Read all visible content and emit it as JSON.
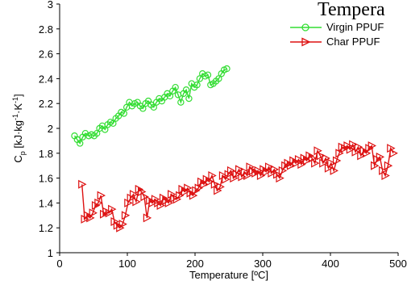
{
  "chart_data": {
    "type": "line",
    "title": "Tempera",
    "xlabel": "Temperature [ºC]",
    "ylabel_main": "C",
    "ylabel_sub": "p",
    "ylabel_rest": " [kJ·kg",
    "ylabel_sup1": "-1",
    "ylabel_mid": "·K",
    "ylabel_sup2": "-1",
    "ylabel_end": "]",
    "xlim": [
      0,
      500
    ],
    "ylim": [
      1,
      3
    ],
    "xticks": [
      0,
      100,
      200,
      300,
      400,
      500
    ],
    "yticks": [
      1,
      1.2,
      1.4,
      1.6,
      1.8,
      2,
      2.2,
      2.4,
      2.6,
      2.8,
      3
    ],
    "legend_position": "top-right",
    "grid": false,
    "series": [
      {
        "name": "Virgin PPUF",
        "color": "#33dd33",
        "marker": "circle",
        "points": [
          [
            22,
            1.94
          ],
          [
            26,
            1.91
          ],
          [
            30,
            1.88
          ],
          [
            34,
            1.93
          ],
          [
            38,
            1.96
          ],
          [
            43,
            1.94
          ],
          [
            47,
            1.95
          ],
          [
            51,
            1.94
          ],
          [
            55,
            1.96
          ],
          [
            59,
            2.0
          ],
          [
            63,
            2.02
          ],
          [
            67,
            1.99
          ],
          [
            71,
            2.03
          ],
          [
            75,
            2.05
          ],
          [
            79,
            2.04
          ],
          [
            83,
            2.08
          ],
          [
            87,
            2.1
          ],
          [
            91,
            2.13
          ],
          [
            95,
            2.12
          ],
          [
            99,
            2.17
          ],
          [
            103,
            2.21
          ],
          [
            107,
            2.18
          ],
          [
            111,
            2.2
          ],
          [
            115,
            2.21
          ],
          [
            119,
            2.18
          ],
          [
            123,
            2.16
          ],
          [
            127,
            2.2
          ],
          [
            131,
            2.22
          ],
          [
            135,
            2.19
          ],
          [
            139,
            2.17
          ],
          [
            143,
            2.21
          ],
          [
            147,
            2.24
          ],
          [
            151,
            2.22
          ],
          [
            155,
            2.25
          ],
          [
            159,
            2.28
          ],
          [
            163,
            2.26
          ],
          [
            167,
            2.3
          ],
          [
            171,
            2.33
          ],
          [
            175,
            2.27
          ],
          [
            179,
            2.21
          ],
          [
            183,
            2.28
          ],
          [
            187,
            2.31
          ],
          [
            191,
            2.24
          ],
          [
            195,
            2.36
          ],
          [
            199,
            2.33
          ],
          [
            203,
            2.35
          ],
          [
            207,
            2.4
          ],
          [
            211,
            2.44
          ],
          [
            215,
            2.42
          ],
          [
            219,
            2.43
          ],
          [
            223,
            2.35
          ],
          [
            227,
            2.36
          ],
          [
            231,
            2.38
          ],
          [
            235,
            2.4
          ],
          [
            239,
            2.44
          ],
          [
            243,
            2.47
          ],
          [
            247,
            2.48
          ]
        ]
      },
      {
        "name": "Char PPUF",
        "color": "#dd1111",
        "marker": "triangle-right",
        "points": [
          [
            33,
            1.55
          ],
          [
            37,
            1.27
          ],
          [
            41,
            1.3
          ],
          [
            45,
            1.28
          ],
          [
            49,
            1.32
          ],
          [
            53,
            1.38
          ],
          [
            57,
            1.4
          ],
          [
            61,
            1.46
          ],
          [
            65,
            1.31
          ],
          [
            69,
            1.33
          ],
          [
            73,
            1.32
          ],
          [
            77,
            1.35
          ],
          [
            81,
            1.25
          ],
          [
            85,
            1.22
          ],
          [
            89,
            1.2
          ],
          [
            93,
            1.23
          ],
          [
            97,
            1.3
          ],
          [
            101,
            1.4
          ],
          [
            105,
            1.44
          ],
          [
            109,
            1.47
          ],
          [
            113,
            1.41
          ],
          [
            117,
            1.51
          ],
          [
            121,
            1.49
          ],
          [
            125,
            1.45
          ],
          [
            129,
            1.28
          ],
          [
            133,
            1.42
          ],
          [
            137,
            1.4
          ],
          [
            141,
            1.43
          ],
          [
            145,
            1.4
          ],
          [
            149,
            1.38
          ],
          [
            153,
            1.44
          ],
          [
            157,
            1.42
          ],
          [
            161,
            1.4
          ],
          [
            165,
            1.47
          ],
          [
            169,
            1.44
          ],
          [
            173,
            1.43
          ],
          [
            177,
            1.46
          ],
          [
            181,
            1.51
          ],
          [
            185,
            1.49
          ],
          [
            189,
            1.52
          ],
          [
            193,
            1.48
          ],
          [
            197,
            1.46
          ],
          [
            201,
            1.5
          ],
          [
            205,
            1.52
          ],
          [
            209,
            1.57
          ],
          [
            213,
            1.55
          ],
          [
            217,
            1.59
          ],
          [
            221,
            1.57
          ],
          [
            225,
            1.62
          ],
          [
            229,
            1.55
          ],
          [
            233,
            1.5
          ],
          [
            237,
            1.53
          ],
          [
            241,
            1.62
          ],
          [
            245,
            1.59
          ],
          [
            249,
            1.63
          ],
          [
            253,
            1.66
          ],
          [
            257,
            1.6
          ],
          [
            261,
            1.63
          ],
          [
            265,
            1.67
          ],
          [
            269,
            1.61
          ],
          [
            273,
            1.65
          ],
          [
            277,
            1.62
          ],
          [
            281,
            1.69
          ],
          [
            285,
            1.66
          ],
          [
            289,
            1.64
          ],
          [
            293,
            1.66
          ],
          [
            297,
            1.62
          ],
          [
            301,
            1.67
          ],
          [
            305,
            1.65
          ],
          [
            309,
            1.69
          ],
          [
            313,
            1.64
          ],
          [
            317,
            1.67
          ],
          [
            321,
            1.63
          ],
          [
            325,
            1.6
          ],
          [
            329,
            1.66
          ],
          [
            333,
            1.7
          ],
          [
            337,
            1.72
          ],
          [
            341,
            1.7
          ],
          [
            345,
            1.74
          ],
          [
            349,
            1.72
          ],
          [
            353,
            1.75
          ],
          [
            357,
            1.71
          ],
          [
            361,
            1.76
          ],
          [
            365,
            1.74
          ],
          [
            369,
            1.78
          ],
          [
            373,
            1.76
          ],
          [
            377,
            1.72
          ],
          [
            381,
            1.82
          ],
          [
            385,
            1.78
          ],
          [
            389,
            1.72
          ],
          [
            393,
            1.76
          ],
          [
            397,
            1.68
          ],
          [
            401,
            1.72
          ],
          [
            405,
            1.66
          ],
          [
            409,
            1.74
          ],
          [
            413,
            1.8
          ],
          [
            417,
            1.85
          ],
          [
            421,
            1.84
          ],
          [
            425,
            1.86
          ],
          [
            429,
            1.83
          ],
          [
            433,
            1.87
          ],
          [
            437,
            1.81
          ],
          [
            441,
            1.85
          ],
          [
            445,
            1.78
          ],
          [
            449,
            1.82
          ],
          [
            453,
            1.8
          ],
          [
            457,
            1.84
          ],
          [
            461,
            1.86
          ],
          [
            465,
            1.7
          ],
          [
            469,
            1.75
          ],
          [
            473,
            1.77
          ],
          [
            477,
            1.66
          ],
          [
            481,
            1.62
          ],
          [
            485,
            1.7
          ],
          [
            489,
            1.84
          ],
          [
            493,
            1.8
          ]
        ]
      }
    ]
  }
}
